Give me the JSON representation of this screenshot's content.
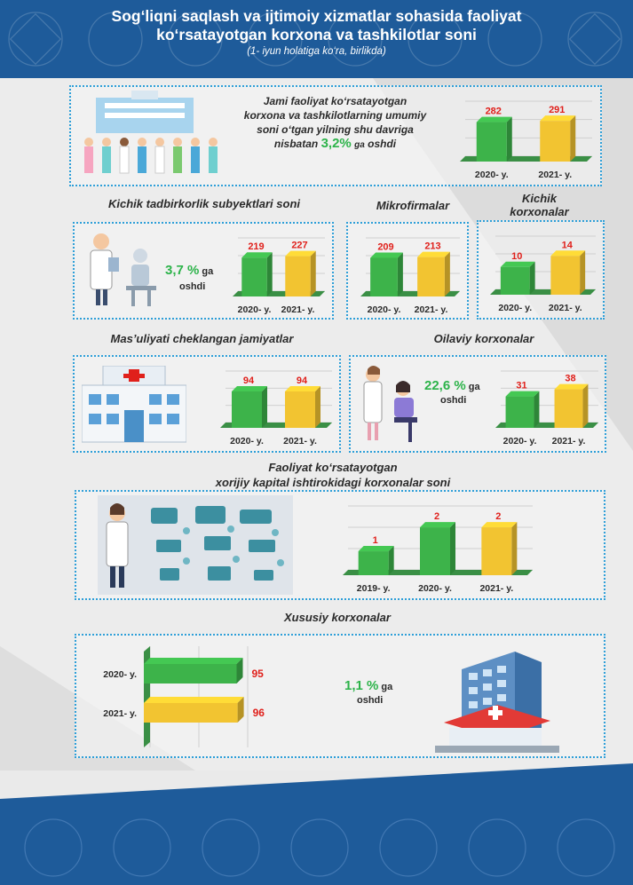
{
  "header": {
    "title_line1": "Sog‘liqni saqlash va ijtimoiy xizmatlar sohasida faoliyat",
    "title_line2": "ko‘rsatayotgan korxona va tashkilotlar soni",
    "subtitle": "(1- iyun holatiga ko‘ra, birlikda)"
  },
  "colors": {
    "green": "#3db34a",
    "yellow": "#f2c431",
    "red_label": "#e0201b",
    "accent_blue": "#2e9fd8",
    "header_blue": "#1e5b9a"
  },
  "total": {
    "text_l1": "Jami faoliyat ko‘rsatayotgan",
    "text_l2": "korxona va tashkilotlarning umumiy",
    "text_l3": "soni o‘tgan yilning shu davriga",
    "text_l4_a": "nisbatan",
    "pct": "3,2%",
    "text_l4_b": "ga",
    "text_l4_c": "oshdi"
  },
  "small_business": {
    "title": "Kichik tadbirkorlik subyektlari soni",
    "pct": "3,7 %",
    "ga": "ga",
    "oshdi": "oshdi"
  },
  "micro": {
    "title": "Mikrofirmalar"
  },
  "small": {
    "title_l1": "Kichik",
    "title_l2": "korxonalar"
  },
  "llc": {
    "title": "Mas’uliyati cheklangan jamiyatlar"
  },
  "family": {
    "title": "Oilaviy korxonalar",
    "pct": "22,6 %",
    "ga": "ga",
    "oshdi": "oshdi"
  },
  "foreign": {
    "title_l1": "Faoliyat ko‘rsatayotgan",
    "title_l2": "xorijiy kapital ishtirokidagi korxonalar soni"
  },
  "private": {
    "title": "Xususiy korxonalar",
    "pct": "1,1 %",
    "ga": "ga",
    "oshdi": "oshdi"
  },
  "chart_data": [
    {
      "id": "total",
      "type": "bar",
      "categories": [
        "2020- y.",
        "2021- y."
      ],
      "values": [
        282,
        291
      ]
    },
    {
      "id": "small_business",
      "type": "bar",
      "categories": [
        "2020- y.",
        "2021- y."
      ],
      "values": [
        219,
        227
      ]
    },
    {
      "id": "micro",
      "type": "bar",
      "categories": [
        "2020- y.",
        "2021- y."
      ],
      "values": [
        209,
        213
      ]
    },
    {
      "id": "small",
      "type": "bar",
      "categories": [
        "2020- y.",
        "2021- y."
      ],
      "values": [
        10,
        14
      ]
    },
    {
      "id": "llc",
      "type": "bar",
      "categories": [
        "2020- y.",
        "2021- y."
      ],
      "values": [
        94,
        94
      ]
    },
    {
      "id": "family",
      "type": "bar",
      "categories": [
        "2020- y.",
        "2021- y."
      ],
      "values": [
        31,
        38
      ]
    },
    {
      "id": "foreign",
      "type": "bar",
      "categories": [
        "2019- y.",
        "2020- y.",
        "2021- y."
      ],
      "values": [
        1,
        2,
        2
      ]
    },
    {
      "id": "private",
      "type": "bar",
      "orientation": "horizontal",
      "categories": [
        "2020- y.",
        "2021- y."
      ],
      "values": [
        95,
        96
      ]
    }
  ]
}
